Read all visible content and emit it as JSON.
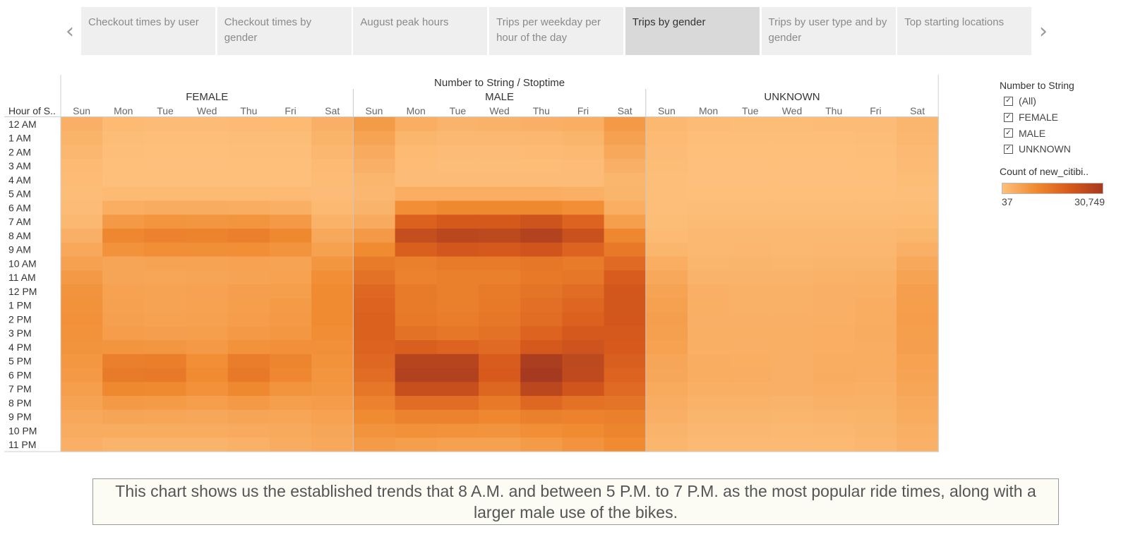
{
  "story": {
    "prev_icon": "chevron-left-icon",
    "next_icon": "chevron-right-icon",
    "tabs": [
      {
        "label": "Checkout times by user",
        "active": false
      },
      {
        "label": "Checkout times by gender",
        "active": false
      },
      {
        "label": "August peak hours",
        "active": false
      },
      {
        "label": "Trips per weekday per hour of the day",
        "active": false
      },
      {
        "label": "Trips by gender",
        "active": true
      },
      {
        "label": "Trips by user type and by gender",
        "active": false
      },
      {
        "label": "Top starting locations",
        "active": false
      }
    ]
  },
  "chart_data": {
    "type": "heatmap",
    "title": "Number to String / Stoptime",
    "row_header": "Hour of S..",
    "groups": [
      "FEMALE",
      "MALE",
      "UNKNOWN"
    ],
    "days": [
      "Sun",
      "Mon",
      "Tue",
      "Wed",
      "Thu",
      "Fri",
      "Sat"
    ],
    "hours": [
      "12 AM",
      "1 AM",
      "2 AM",
      "3 AM",
      "4 AM",
      "5 AM",
      "6 AM",
      "7 AM",
      "8 AM",
      "9 AM",
      "10 AM",
      "11 AM",
      "12 PM",
      "1 PM",
      "2 PM",
      "3 PM",
      "4 PM",
      "5 PM",
      "6 PM",
      "7 PM",
      "8 PM",
      "9 PM",
      "10 PM",
      "11 PM"
    ],
    "color_min": 37,
    "color_max": 30749,
    "values": {
      "FEMALE": [
        [
          3000,
          1200,
          900,
          900,
          1100,
          1200,
          3000
        ],
        [
          2400,
          700,
          500,
          500,
          600,
          700,
          2400
        ],
        [
          1800,
          400,
          300,
          300,
          400,
          500,
          1800
        ],
        [
          1200,
          300,
          200,
          200,
          300,
          300,
          1200
        ],
        [
          800,
          300,
          300,
          300,
          300,
          300,
          800
        ],
        [
          700,
          1200,
          1200,
          1200,
          1200,
          1100,
          900
        ],
        [
          900,
          3500,
          3800,
          3800,
          3700,
          3300,
          1400
        ],
        [
          1500,
          7500,
          8200,
          8000,
          8300,
          7200,
          2600
        ],
        [
          3000,
          11000,
          12000,
          11800,
          12500,
          10500,
          4500
        ],
        [
          4500,
          8800,
          9500,
          9300,
          9500,
          8500,
          6000
        ],
        [
          6000,
          5200,
          5400,
          5500,
          5700,
          5600,
          8000
        ],
        [
          7500,
          5200,
          5000,
          5200,
          5600,
          5800,
          9500
        ],
        [
          8500,
          5800,
          5500,
          5700,
          6200,
          6500,
          10000
        ],
        [
          8800,
          5900,
          5600,
          5800,
          6500,
          7000,
          10000
        ],
        [
          9000,
          6100,
          5800,
          6000,
          6700,
          7200,
          10000
        ],
        [
          8800,
          6600,
          6300,
          6500,
          7200,
          7900,
          9800
        ],
        [
          8500,
          8300,
          8000,
          7400,
          8600,
          9200,
          9200
        ],
        [
          7800,
          12500,
          12800,
          9500,
          13000,
          11500,
          8800
        ],
        [
          7200,
          13500,
          14000,
          10000,
          14000,
          11000,
          8300
        ],
        [
          6500,
          10500,
          10200,
          9000,
          10500,
          8500,
          7800
        ],
        [
          5500,
          7200,
          7000,
          6500,
          7200,
          6500,
          6800
        ],
        [
          4500,
          5200,
          5000,
          4800,
          5300,
          5000,
          5800
        ],
        [
          3800,
          3800,
          3800,
          3800,
          4000,
          4300,
          5000
        ],
        [
          3000,
          2500,
          2500,
          2500,
          2800,
          3800,
          4500
        ]
      ],
      "MALE": [
        [
          7000,
          3500,
          2500,
          2700,
          3000,
          3500,
          7500
        ],
        [
          5500,
          2000,
          1500,
          1500,
          1800,
          2200,
          6000
        ],
        [
          4000,
          1200,
          900,
          900,
          1100,
          1400,
          4500
        ],
        [
          3000,
          800,
          600,
          600,
          700,
          900,
          3200
        ],
        [
          2000,
          900,
          900,
          900,
          900,
          900,
          2000
        ],
        [
          1800,
          3500,
          3500,
          3500,
          3500,
          3300,
          2200
        ],
        [
          2500,
          9500,
          10500,
          10500,
          10500,
          9500,
          3500
        ],
        [
          4000,
          19000,
          21000,
          21000,
          22500,
          18500,
          6500
        ],
        [
          7500,
          24500,
          26500,
          26000,
          28000,
          23500,
          11000
        ],
        [
          10000,
          19500,
          21500,
          21000,
          22000,
          18500,
          14000
        ],
        [
          13500,
          12500,
          13500,
          13500,
          14500,
          13500,
          17000
        ],
        [
          15500,
          12000,
          12500,
          12500,
          14000,
          14500,
          20000
        ],
        [
          17500,
          13500,
          12500,
          13500,
          15000,
          16500,
          21500
        ],
        [
          18500,
          13500,
          12500,
          14000,
          16000,
          18000,
          21500
        ],
        [
          19000,
          14000,
          13000,
          14500,
          16500,
          19000,
          21500
        ],
        [
          19000,
          15500,
          14500,
          15500,
          18500,
          21000,
          21000
        ],
        [
          18500,
          19500,
          18500,
          17000,
          21000,
          22500,
          20500
        ],
        [
          17500,
          27500,
          27500,
          20000,
          29500,
          26000,
          19500
        ],
        [
          16500,
          28500,
          28500,
          20500,
          30749,
          25500,
          18500
        ],
        [
          14500,
          24000,
          24000,
          18000,
          26500,
          22000,
          17000
        ],
        [
          12000,
          16500,
          16500,
          14000,
          17500,
          15500,
          15000
        ],
        [
          10000,
          12000,
          12000,
          11000,
          12500,
          12000,
          12500
        ],
        [
          8500,
          9000,
          8800,
          8500,
          9500,
          10000,
          11500
        ],
        [
          7000,
          6500,
          6000,
          6000,
          7000,
          8500,
          10000
        ]
      ],
      "UNKNOWN": [
        [
          1500,
          800,
          700,
          700,
          800,
          900,
          2000
        ],
        [
          1200,
          500,
          400,
          400,
          500,
          600,
          1700
        ],
        [
          900,
          300,
          300,
          300,
          300,
          400,
          1300
        ],
        [
          700,
          200,
          200,
          200,
          200,
          300,
          1000
        ],
        [
          500,
          200,
          200,
          200,
          200,
          200,
          700
        ],
        [
          400,
          300,
          300,
          300,
          300,
          300,
          500
        ],
        [
          500,
          600,
          600,
          600,
          600,
          600,
          700
        ],
        [
          700,
          1000,
          1000,
          1000,
          1000,
          1000,
          1200
        ],
        [
          1200,
          1500,
          1600,
          1500,
          1600,
          1500,
          2000
        ],
        [
          2000,
          1600,
          1700,
          1600,
          1700,
          1700,
          3200
        ],
        [
          3500,
          2000,
          2100,
          2000,
          2100,
          2200,
          4500
        ],
        [
          4500,
          2500,
          2500,
          2500,
          2600,
          2800,
          5500
        ],
        [
          5500,
          3000,
          2800,
          2800,
          3000,
          3300,
          6200
        ],
        [
          6000,
          3100,
          2900,
          2900,
          3200,
          3600,
          6500
        ],
        [
          6200,
          3200,
          3000,
          3000,
          3300,
          3700,
          6600
        ],
        [
          6100,
          3300,
          3100,
          3100,
          3400,
          3800,
          6500
        ],
        [
          5800,
          3300,
          3200,
          3100,
          3400,
          3600,
          6200
        ],
        [
          5000,
          3600,
          3500,
          3200,
          3700,
          3700,
          5800
        ],
        [
          4700,
          3700,
          3600,
          3200,
          3800,
          3600,
          5500
        ],
        [
          4200,
          3300,
          3300,
          3000,
          3400,
          3300,
          5000
        ],
        [
          3600,
          2700,
          2700,
          2500,
          2800,
          2800,
          4400
        ],
        [
          3000,
          2200,
          2200,
          2000,
          2300,
          2400,
          3800
        ],
        [
          2500,
          1700,
          1700,
          1600,
          1800,
          2100,
          3300
        ],
        [
          2000,
          1300,
          1300,
          1300,
          1400,
          1800,
          2800
        ]
      ]
    }
  },
  "legend": {
    "filter_title": "Number to String",
    "filter_items": [
      "(All)",
      "FEMALE",
      "MALE",
      "UNKNOWN"
    ],
    "check_glyph": "✓",
    "color_title": "Count of new_citibi..",
    "min_label": "37",
    "max_label": "30,749",
    "colors": [
      "#fdc07c",
      "#f08a30",
      "#d75a1c",
      "#a63a20"
    ]
  },
  "caption": "This chart shows us the established trends that  8 A.M. and between 5 P.M. to 7 P.M. as the most popular ride times, along with a larger male use of the bikes."
}
